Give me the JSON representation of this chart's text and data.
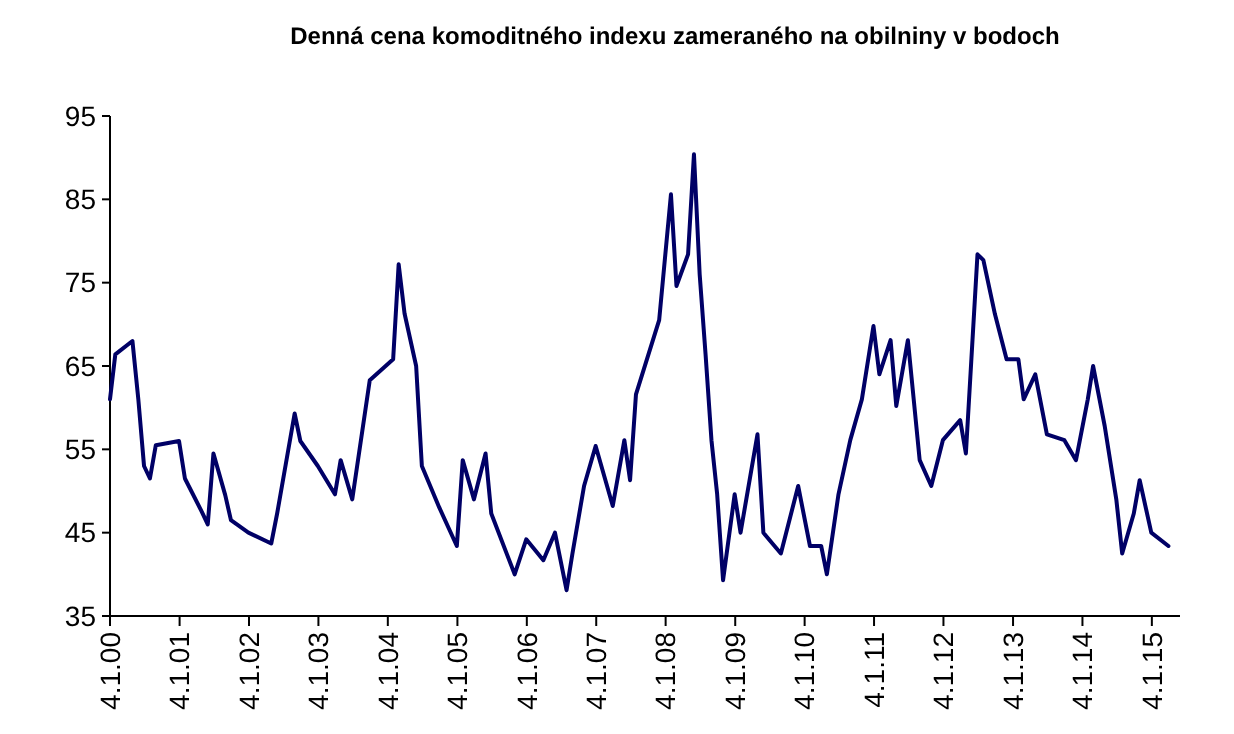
{
  "chart_data": {
    "type": "line",
    "title": "Denná cena komoditného indexu zameraného na obilniny v bodoch",
    "x": [
      "2000-01-04",
      "2000-02",
      "2000-05",
      "2000-06",
      "2000-07",
      "2000-08",
      "2000-09",
      "2001-01",
      "2001-02",
      "2001-05",
      "2001-06",
      "2001-07",
      "2001-09",
      "2001-10",
      "2002-01",
      "2002-05",
      "2002-06",
      "2002-09",
      "2002-10",
      "2003-01",
      "2003-04",
      "2003-05",
      "2003-07",
      "2003-10",
      "2004-02",
      "2004-03",
      "2004-04",
      "2004-06",
      "2004-07",
      "2004-10",
      "2005-01",
      "2005-02",
      "2005-04",
      "2005-06",
      "2005-07",
      "2005-11",
      "2006-01",
      "2006-04",
      "2006-06",
      "2006-08",
      "2006-09",
      "2006-11",
      "2007-01",
      "2007-04",
      "2007-06",
      "2007-07",
      "2007-08",
      "2007-12",
      "2008-02",
      "2008-03",
      "2008-05",
      "2008-06",
      "2008-07",
      "2008-08",
      "2008-09",
      "2008-10",
      "2008-11",
      "2009-01",
      "2009-02",
      "2009-05",
      "2009-06",
      "2009-09",
      "2009-12",
      "2010-02",
      "2010-04",
      "2010-05",
      "2010-07",
      "2010-09",
      "2010-11",
      "2011-01",
      "2011-02",
      "2011-04",
      "2011-05",
      "2011-07",
      "2011-09",
      "2011-11",
      "2012-01",
      "2012-04",
      "2012-05",
      "2012-07",
      "2012-08",
      "2012-10",
      "2012-12",
      "2013-02",
      "2013-03",
      "2013-05",
      "2013-07",
      "2013-10",
      "2013-12",
      "2014-02",
      "2014-03",
      "2014-05",
      "2014-07",
      "2014-08",
      "2014-10",
      "2014-11",
      "2015-01",
      "2015-04"
    ],
    "series": [
      {
        "color": "#000066",
        "values": [
          61,
          66.4,
          68,
          61,
          53,
          51.5,
          55.5,
          56,
          51.5,
          47.5,
          46,
          54.5,
          49.5,
          46.5,
          45,
          43.7,
          47.3,
          59.3,
          56,
          53,
          49.6,
          53.7,
          49,
          63.3,
          65.8,
          77.2,
          71.3,
          65,
          53,
          48,
          43.4,
          53.7,
          49,
          54.5,
          47.3,
          40,
          44.2,
          41.7,
          45,
          38.1,
          42.5,
          50.6,
          55.4,
          48.2,
          56.1,
          51.3,
          61.6,
          70.5,
          85.6,
          74.6,
          78.4,
          90.4,
          76,
          66.4,
          56.1,
          49.6,
          39.3,
          49.6,
          45,
          56.8,
          45,
          42.5,
          50.6,
          43.4,
          43.4,
          40,
          49.6,
          56.1,
          61,
          69.8,
          64,
          68.1,
          60.2,
          68.1,
          53.7,
          50.6,
          56.1,
          58.5,
          54.5,
          78.4,
          77.7,
          71.2,
          65.8,
          65.8,
          61,
          64,
          56.8,
          56.1,
          53.7,
          61,
          65,
          57.8,
          49,
          42.5,
          47.3,
          51.3,
          45,
          43.4
        ]
      }
    ],
    "xlim": [
      "2000-01-04",
      "2015-06"
    ],
    "xticks": [
      {
        "value": "2000-01-04",
        "label": "4.1.00"
      },
      {
        "value": "2001-01-04",
        "label": "4.1.01"
      },
      {
        "value": "2002-01-04",
        "label": "4.1.02"
      },
      {
        "value": "2003-01-04",
        "label": "4.1.03"
      },
      {
        "value": "2004-01-04",
        "label": "4.1.04"
      },
      {
        "value": "2005-01-04",
        "label": "4.1.05"
      },
      {
        "value": "2006-01-04",
        "label": "4.1.06"
      },
      {
        "value": "2007-01-04",
        "label": "4.1.07"
      },
      {
        "value": "2008-01-04",
        "label": "4.1.08"
      },
      {
        "value": "2009-01-04",
        "label": "4.1.09"
      },
      {
        "value": "2010-01-04",
        "label": "4.1.10"
      },
      {
        "value": "2011-01-04",
        "label": "4.1.11"
      },
      {
        "value": "2012-01-04",
        "label": "4.1.12"
      },
      {
        "value": "2013-01-04",
        "label": "4.1.13"
      },
      {
        "value": "2014-01-04",
        "label": "4.1.14"
      },
      {
        "value": "2015-01-04",
        "label": "4.1.15"
      }
    ],
    "ylim": [
      35,
      95
    ],
    "yticks": [
      35,
      45,
      55,
      65,
      75,
      85,
      95
    ],
    "line_style": "solid"
  }
}
